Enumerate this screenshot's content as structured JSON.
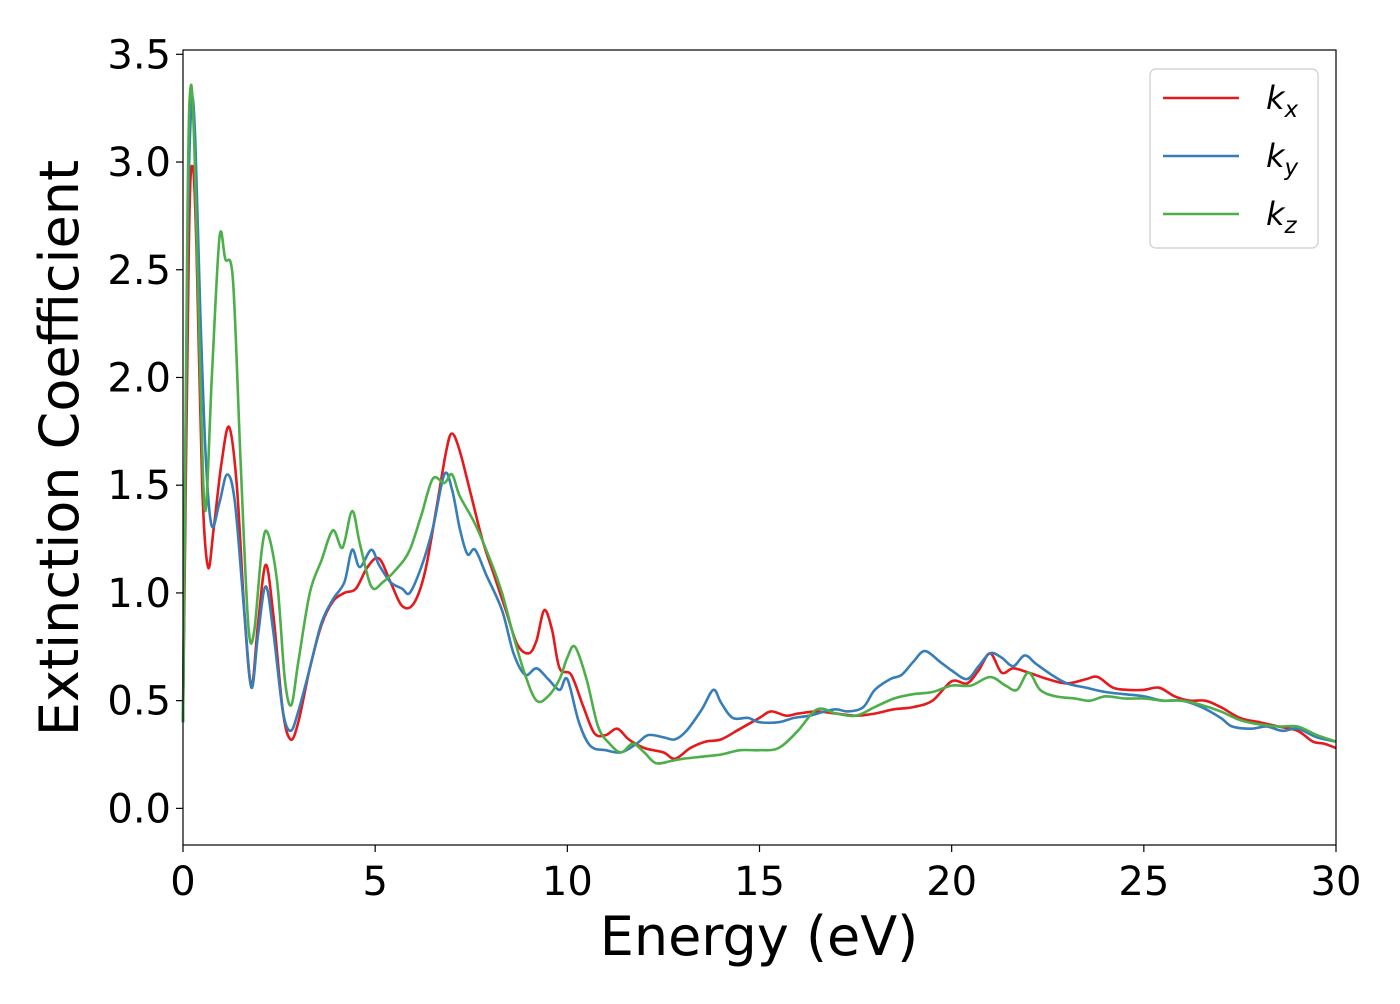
{
  "chart_data": {
    "type": "line",
    "title": "",
    "xlabel": "Energy (eV)",
    "ylabel": "Extinction Coefficient",
    "xlim": [
      0,
      30
    ],
    "ylim": [
      -0.17,
      3.52
    ],
    "xticks": [
      0,
      5,
      10,
      15,
      20,
      25,
      30
    ],
    "xtick_labels": [
      "0",
      "5",
      "10",
      "15",
      "20",
      "25",
      "30"
    ],
    "yticks": [
      0.0,
      0.5,
      1.0,
      1.5,
      2.0,
      2.5,
      3.0,
      3.5
    ],
    "ytick_labels": [
      "0.0",
      "0.5",
      "1.0",
      "1.5",
      "2.0",
      "2.5",
      "3.0",
      "3.5"
    ],
    "grid": false,
    "legend_position": "top-right",
    "series": [
      {
        "name": "k_x",
        "label_base": "k",
        "label_sub": "x",
        "color": "#e41a1c",
        "points": [
          [
            0,
            0.4
          ],
          [
            0.15,
            2.6
          ],
          [
            0.25,
            2.98
          ],
          [
            0.35,
            2.6
          ],
          [
            0.5,
            1.5
          ],
          [
            0.65,
            1.12
          ],
          [
            0.8,
            1.3
          ],
          [
            1.0,
            1.6
          ],
          [
            1.2,
            1.77
          ],
          [
            1.4,
            1.5
          ],
          [
            1.6,
            0.9
          ],
          [
            1.78,
            0.57
          ],
          [
            1.95,
            0.85
          ],
          [
            2.15,
            1.13
          ],
          [
            2.35,
            0.9
          ],
          [
            2.6,
            0.45
          ],
          [
            2.8,
            0.32
          ],
          [
            3.0,
            0.4
          ],
          [
            3.3,
            0.65
          ],
          [
            3.6,
            0.85
          ],
          [
            3.9,
            0.96
          ],
          [
            4.2,
            1.0
          ],
          [
            4.5,
            1.02
          ],
          [
            4.8,
            1.12
          ],
          [
            5.1,
            1.16
          ],
          [
            5.4,
            1.05
          ],
          [
            5.7,
            0.94
          ],
          [
            6.0,
            0.95
          ],
          [
            6.3,
            1.1
          ],
          [
            6.6,
            1.4
          ],
          [
            6.85,
            1.66
          ],
          [
            7.0,
            1.74
          ],
          [
            7.2,
            1.66
          ],
          [
            7.5,
            1.45
          ],
          [
            7.8,
            1.24
          ],
          [
            8.1,
            1.08
          ],
          [
            8.4,
            0.92
          ],
          [
            8.7,
            0.76
          ],
          [
            9.0,
            0.72
          ],
          [
            9.2,
            0.78
          ],
          [
            9.4,
            0.92
          ],
          [
            9.6,
            0.83
          ],
          [
            9.8,
            0.65
          ],
          [
            10.1,
            0.62
          ],
          [
            10.4,
            0.48
          ],
          [
            10.7,
            0.35
          ],
          [
            11.0,
            0.34
          ],
          [
            11.3,
            0.37
          ],
          [
            11.6,
            0.32
          ],
          [
            12.0,
            0.28
          ],
          [
            12.5,
            0.26
          ],
          [
            12.8,
            0.23
          ],
          [
            13.2,
            0.28
          ],
          [
            13.6,
            0.31
          ],
          [
            14.0,
            0.32
          ],
          [
            14.5,
            0.37
          ],
          [
            15.0,
            0.42
          ],
          [
            15.3,
            0.45
          ],
          [
            15.7,
            0.43
          ],
          [
            16.0,
            0.44
          ],
          [
            16.5,
            0.45
          ],
          [
            17.0,
            0.44
          ],
          [
            17.5,
            0.43
          ],
          [
            18.0,
            0.44
          ],
          [
            18.5,
            0.46
          ],
          [
            19.0,
            0.47
          ],
          [
            19.5,
            0.5
          ],
          [
            20.0,
            0.59
          ],
          [
            20.4,
            0.58
          ],
          [
            20.7,
            0.64
          ],
          [
            21.0,
            0.72
          ],
          [
            21.3,
            0.63
          ],
          [
            21.6,
            0.65
          ],
          [
            22.0,
            0.63
          ],
          [
            22.5,
            0.6
          ],
          [
            23.0,
            0.58
          ],
          [
            23.5,
            0.6
          ],
          [
            23.8,
            0.61
          ],
          [
            24.2,
            0.56
          ],
          [
            24.6,
            0.55
          ],
          [
            25.0,
            0.55
          ],
          [
            25.4,
            0.56
          ],
          [
            25.8,
            0.52
          ],
          [
            26.2,
            0.5
          ],
          [
            26.6,
            0.5
          ],
          [
            27.0,
            0.47
          ],
          [
            27.5,
            0.42
          ],
          [
            28.0,
            0.4
          ],
          [
            28.5,
            0.38
          ],
          [
            29.0,
            0.36
          ],
          [
            29.4,
            0.31
          ],
          [
            29.7,
            0.3
          ],
          [
            30.0,
            0.28
          ]
        ]
      },
      {
        "name": "k_y",
        "label_base": "k",
        "label_sub": "y",
        "color": "#377eb8",
        "points": [
          [
            0,
            0.4
          ],
          [
            0.12,
            2.6
          ],
          [
            0.22,
            3.27
          ],
          [
            0.32,
            3.1
          ],
          [
            0.45,
            2.3
          ],
          [
            0.6,
            1.6
          ],
          [
            0.75,
            1.31
          ],
          [
            0.95,
            1.42
          ],
          [
            1.15,
            1.55
          ],
          [
            1.35,
            1.42
          ],
          [
            1.6,
            0.9
          ],
          [
            1.78,
            0.56
          ],
          [
            1.95,
            0.8
          ],
          [
            2.15,
            1.03
          ],
          [
            2.35,
            0.82
          ],
          [
            2.6,
            0.45
          ],
          [
            2.8,
            0.36
          ],
          [
            3.0,
            0.45
          ],
          [
            3.3,
            0.65
          ],
          [
            3.6,
            0.86
          ],
          [
            3.9,
            0.97
          ],
          [
            4.2,
            1.05
          ],
          [
            4.4,
            1.2
          ],
          [
            4.6,
            1.12
          ],
          [
            4.9,
            1.2
          ],
          [
            5.1,
            1.13
          ],
          [
            5.4,
            1.05
          ],
          [
            5.7,
            1.02
          ],
          [
            5.9,
            1.0
          ],
          [
            6.2,
            1.12
          ],
          [
            6.5,
            1.3
          ],
          [
            6.8,
            1.55
          ],
          [
            7.0,
            1.48
          ],
          [
            7.2,
            1.3
          ],
          [
            7.4,
            1.18
          ],
          [
            7.6,
            1.2
          ],
          [
            7.9,
            1.08
          ],
          [
            8.3,
            0.92
          ],
          [
            8.6,
            0.72
          ],
          [
            8.9,
            0.62
          ],
          [
            9.2,
            0.65
          ],
          [
            9.5,
            0.6
          ],
          [
            9.8,
            0.55
          ],
          [
            10.0,
            0.6
          ],
          [
            10.3,
            0.4
          ],
          [
            10.6,
            0.29
          ],
          [
            11.0,
            0.27
          ],
          [
            11.4,
            0.26
          ],
          [
            11.8,
            0.3
          ],
          [
            12.1,
            0.34
          ],
          [
            12.5,
            0.33
          ],
          [
            12.8,
            0.32
          ],
          [
            13.1,
            0.36
          ],
          [
            13.5,
            0.46
          ],
          [
            13.8,
            0.55
          ],
          [
            14.0,
            0.49
          ],
          [
            14.3,
            0.42
          ],
          [
            14.7,
            0.42
          ],
          [
            15.0,
            0.4
          ],
          [
            15.5,
            0.4
          ],
          [
            15.9,
            0.42
          ],
          [
            16.3,
            0.43
          ],
          [
            16.7,
            0.45
          ],
          [
            17.0,
            0.46
          ],
          [
            17.3,
            0.45
          ],
          [
            17.7,
            0.47
          ],
          [
            18.0,
            0.55
          ],
          [
            18.4,
            0.6
          ],
          [
            18.7,
            0.62
          ],
          [
            19.0,
            0.68
          ],
          [
            19.3,
            0.73
          ],
          [
            19.7,
            0.68
          ],
          [
            20.0,
            0.64
          ],
          [
            20.4,
            0.6
          ],
          [
            20.7,
            0.66
          ],
          [
            21.0,
            0.72
          ],
          [
            21.3,
            0.7
          ],
          [
            21.6,
            0.66
          ],
          [
            21.9,
            0.71
          ],
          [
            22.2,
            0.67
          ],
          [
            22.6,
            0.62
          ],
          [
            23.0,
            0.58
          ],
          [
            23.5,
            0.56
          ],
          [
            24.0,
            0.54
          ],
          [
            24.5,
            0.53
          ],
          [
            25.0,
            0.52
          ],
          [
            25.5,
            0.5
          ],
          [
            26.0,
            0.5
          ],
          [
            26.5,
            0.47
          ],
          [
            27.0,
            0.42
          ],
          [
            27.3,
            0.38
          ],
          [
            27.8,
            0.37
          ],
          [
            28.2,
            0.38
          ],
          [
            28.6,
            0.36
          ],
          [
            29.0,
            0.37
          ],
          [
            29.5,
            0.33
          ],
          [
            30.0,
            0.31
          ]
        ]
      },
      {
        "name": "k_z",
        "label_base": "k",
        "label_sub": "z",
        "color": "#4daf4a",
        "points": [
          [
            0,
            0.4
          ],
          [
            0.12,
            2.8
          ],
          [
            0.2,
            3.35
          ],
          [
            0.3,
            3.05
          ],
          [
            0.45,
            2.0
          ],
          [
            0.58,
            1.38
          ],
          [
            0.75,
            2.0
          ],
          [
            0.95,
            2.65
          ],
          [
            1.1,
            2.55
          ],
          [
            1.3,
            2.45
          ],
          [
            1.5,
            1.6
          ],
          [
            1.7,
            0.85
          ],
          [
            1.85,
            0.82
          ],
          [
            2.05,
            1.2
          ],
          [
            2.2,
            1.28
          ],
          [
            2.45,
            1.05
          ],
          [
            2.65,
            0.6
          ],
          [
            2.82,
            0.48
          ],
          [
            3.0,
            0.68
          ],
          [
            3.3,
            1.0
          ],
          [
            3.6,
            1.15
          ],
          [
            3.9,
            1.29
          ],
          [
            4.15,
            1.21
          ],
          [
            4.4,
            1.38
          ],
          [
            4.6,
            1.23
          ],
          [
            4.9,
            1.03
          ],
          [
            5.2,
            1.05
          ],
          [
            5.6,
            1.12
          ],
          [
            5.9,
            1.2
          ],
          [
            6.2,
            1.36
          ],
          [
            6.5,
            1.53
          ],
          [
            6.8,
            1.51
          ],
          [
            7.0,
            1.55
          ],
          [
            7.2,
            1.45
          ],
          [
            7.6,
            1.32
          ],
          [
            8.0,
            1.15
          ],
          [
            8.3,
            1.0
          ],
          [
            8.6,
            0.8
          ],
          [
            8.9,
            0.62
          ],
          [
            9.2,
            0.5
          ],
          [
            9.5,
            0.52
          ],
          [
            9.8,
            0.6
          ],
          [
            10.0,
            0.7
          ],
          [
            10.2,
            0.75
          ],
          [
            10.5,
            0.6
          ],
          [
            10.8,
            0.38
          ],
          [
            11.1,
            0.3
          ],
          [
            11.4,
            0.26
          ],
          [
            11.7,
            0.3
          ],
          [
            12.0,
            0.26
          ],
          [
            12.3,
            0.21
          ],
          [
            12.7,
            0.22
          ],
          [
            13.0,
            0.23
          ],
          [
            13.5,
            0.24
          ],
          [
            14.0,
            0.25
          ],
          [
            14.5,
            0.27
          ],
          [
            15.0,
            0.27
          ],
          [
            15.5,
            0.28
          ],
          [
            16.0,
            0.36
          ],
          [
            16.5,
            0.46
          ],
          [
            17.0,
            0.44
          ],
          [
            17.5,
            0.43
          ],
          [
            18.0,
            0.47
          ],
          [
            18.5,
            0.51
          ],
          [
            19.0,
            0.53
          ],
          [
            19.5,
            0.54
          ],
          [
            20.0,
            0.57
          ],
          [
            20.5,
            0.57
          ],
          [
            21.0,
            0.61
          ],
          [
            21.4,
            0.57
          ],
          [
            21.7,
            0.55
          ],
          [
            22.0,
            0.63
          ],
          [
            22.3,
            0.55
          ],
          [
            22.7,
            0.52
          ],
          [
            23.2,
            0.51
          ],
          [
            23.6,
            0.5
          ],
          [
            24.0,
            0.52
          ],
          [
            24.5,
            0.51
          ],
          [
            25.0,
            0.51
          ],
          [
            25.5,
            0.5
          ],
          [
            26.0,
            0.5
          ],
          [
            26.5,
            0.48
          ],
          [
            27.0,
            0.45
          ],
          [
            27.5,
            0.41
          ],
          [
            28.0,
            0.39
          ],
          [
            28.5,
            0.38
          ],
          [
            29.0,
            0.38
          ],
          [
            29.5,
            0.34
          ],
          [
            30.0,
            0.31
          ]
        ]
      }
    ]
  }
}
